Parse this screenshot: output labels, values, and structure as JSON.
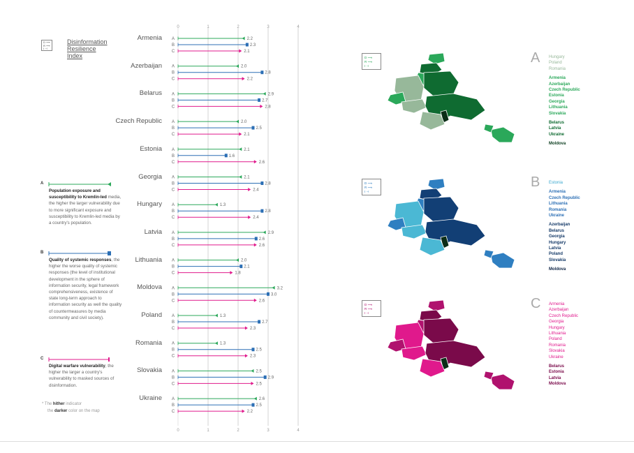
{
  "header": {
    "title_lines": [
      "Disinformation",
      "Resilience",
      "Index"
    ]
  },
  "legend_key": {
    "glyph_lines": [
      "D ⟶",
      "R ⟶",
      "I ⊣"
    ]
  },
  "indicators": [
    {
      "letter": "A",
      "bold": "Population exposure and susceptibility to Kremlin-led",
      "text": "media, the higher the larger vulnerability due to more significant exposure and susceptibility to Kremlin-led media by a country's population.",
      "color": "#2ba85a"
    },
    {
      "letter": "B",
      "bold": "Quality of systemic responses",
      "text": ", the higher the worse quality of systemic responses (the level of institutional development in the sphere of information security, legal framework comprehensiveness, existence of state long-term approach to information security as well the quality of countermeasures by media community and civil society).",
      "color": "#2c6fb5"
    },
    {
      "letter": "C",
      "bold": "Digital warfare vulnerability",
      "text": ", the higher the larger a country's vulnerability to masked sources of disinformation.",
      "color": "#e0198c"
    }
  ],
  "footnote": {
    "star": "*",
    "pre1": "The",
    "bold1": "hither",
    "post1": "indicator",
    "pre2": "the",
    "bold2": "darker",
    "post2": "color on the map"
  },
  "chart_data": {
    "type": "bar",
    "orientation": "horizontal",
    "xlim": [
      0,
      4
    ],
    "x_ticks": [
      "0",
      "1",
      "2",
      "3",
      "4"
    ],
    "sub_labels": [
      "A",
      "B",
      "C"
    ],
    "categories": [
      "Armenia",
      "Azerbaijan",
      "Belarus",
      "Czech Republic",
      "Estonia",
      "Georgia",
      "Hungary",
      "Latvia",
      "Lithuania",
      "Moldova",
      "Poland",
      "Romania",
      "Slovakia",
      "Ukraine"
    ],
    "series": [
      {
        "name": "A",
        "color": "#2ba85a",
        "values": [
          2.2,
          2.0,
          2.9,
          2.0,
          2.1,
          2.1,
          1.3,
          2.9,
          2.0,
          3.2,
          1.3,
          1.3,
          2.5,
          2.6
        ]
      },
      {
        "name": "B",
        "color": "#2c6fb5",
        "values": [
          2.3,
          2.8,
          2.7,
          2.5,
          1.6,
          2.8,
          2.8,
          2.6,
          2.1,
          3.0,
          2.7,
          2.5,
          2.9,
          2.5
        ]
      },
      {
        "name": "C",
        "color": "#e0198c",
        "values": [
          2.1,
          2.2,
          2.8,
          2.1,
          2.6,
          2.4,
          2.4,
          2.6,
          1.8,
          2.6,
          2.3,
          2.3,
          2.5,
          2.2
        ]
      }
    ],
    "value_labels": [
      [
        "2.2",
        "2.3",
        "2.1"
      ],
      [
        "2.0",
        "2.8",
        "2.2"
      ],
      [
        "2.9",
        "2.7",
        "2.8"
      ],
      [
        "2.0",
        "2.5",
        "2.1"
      ],
      [
        "2.1",
        "1.6",
        "2.6"
      ],
      [
        "2.1",
        "2.8",
        "2.4"
      ],
      [
        "1.3",
        "2.8",
        "2.4"
      ],
      [
        "2.9",
        "2.6",
        "2.6"
      ],
      [
        "2.0",
        "2.1",
        "1.8"
      ],
      [
        "3.2",
        "3.0",
        "2.6"
      ],
      [
        "1.3",
        "2.7",
        "2.3"
      ],
      [
        "1.3",
        "2.5",
        "2.3"
      ],
      [
        "2.5",
        "2.9",
        "2.5"
      ],
      [
        "2.6",
        "2.5",
        "2.2"
      ]
    ]
  },
  "maps": [
    {
      "letter": "A",
      "colors": [
        "#97b89a",
        "#2ba85a",
        "#0f6b31"
      ],
      "groups": [
        {
          "color": "#97b89a",
          "names": [
            "Hungary",
            "Poland",
            "Romania"
          ]
        },
        {
          "color": "#2ba85a",
          "names": [
            "Armenia",
            "Azerbaijan",
            "Czech Republic",
            "Estonia",
            "Georgia",
            "Lithuania",
            "Slovakia"
          ]
        },
        {
          "color": "#0f6b31",
          "names": [
            "Belarus",
            "Latvia",
            "Ukraine"
          ]
        },
        {
          "color": "#0b3d1f",
          "names": [
            "Moldova"
          ]
        }
      ]
    },
    {
      "letter": "B",
      "colors": [
        "#4bb8d4",
        "#2f7fc1",
        "#123f75"
      ],
      "groups": [
        {
          "color": "#3aa8cf",
          "names": [
            "Estonia"
          ]
        },
        {
          "color": "#2c6fb5",
          "names": [
            "Armenia",
            "Czech Republic",
            "Lithuania",
            "Romania",
            "Ukraine"
          ]
        },
        {
          "color": "#153a68",
          "names": [
            "Azerbaijan",
            "Belarus",
            "Georgia",
            "Hungary",
            "Latvia",
            "Poland",
            "Slovakia"
          ]
        },
        {
          "color": "#0e2445",
          "names": [
            "Moldova"
          ]
        }
      ]
    },
    {
      "letter": "C",
      "colors": [
        "#e0198c",
        "#b0126e",
        "#7a0a4a"
      ],
      "groups": [
        {
          "color": "#e0198c",
          "names": [
            "Armenia",
            "Azerbaijan",
            "Czech Republic",
            "Georgia",
            "Hungary",
            "Lithuania",
            "Poland",
            "Romania",
            "Slovakia",
            "Ukraine"
          ]
        },
        {
          "color": "#7a0a4a",
          "names": [
            "Belarus",
            "Estonia",
            "Latvia",
            "Moldova"
          ]
        }
      ]
    }
  ]
}
